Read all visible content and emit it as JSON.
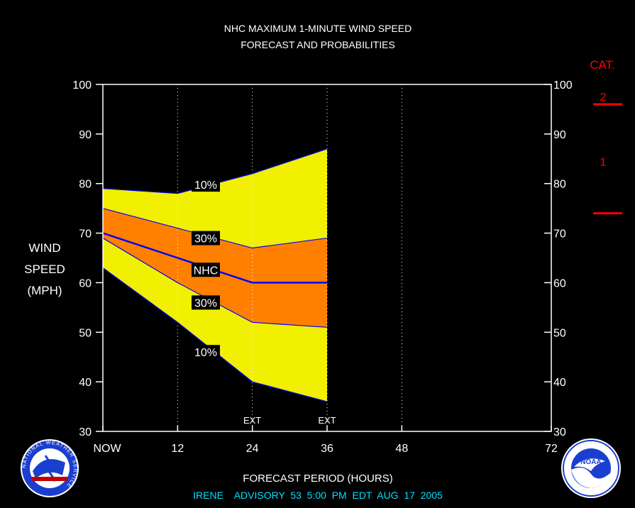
{
  "chart_data": {
    "type": "area",
    "title": "NHC MAXIMUM 1-MINUTE WIND SPEED",
    "subtitle": "FORECAST AND PROBABILITIES",
    "ylabel_lines": [
      "WIND",
      "SPEED",
      "(MPH)"
    ],
    "xlabel": "FORECAST PERIOD (HOURS)",
    "footer": "IRENE    ADVISORY  53  5:00  PM  EDT  AUG  17  2005",
    "ylim": [
      30,
      100
    ],
    "xlim": [
      0,
      72
    ],
    "x_ticks": [
      {
        "x": 0,
        "label": "NOW"
      },
      {
        "x": 12,
        "label": "12"
      },
      {
        "x": 24,
        "label": "24"
      },
      {
        "x": 36,
        "label": "36"
      },
      {
        "x": 48,
        "label": "48"
      },
      {
        "x": 72,
        "label": "72"
      }
    ],
    "y_ticks": [
      30,
      40,
      50,
      60,
      70,
      80,
      90,
      100
    ],
    "vertical_gridlines_x": [
      12,
      24,
      36,
      48
    ],
    "ext_markers": [
      {
        "x": 24,
        "label": "EXT"
      },
      {
        "x": 36,
        "label": "EXT"
      }
    ],
    "x": [
      0,
      12,
      24,
      36
    ],
    "series": [
      {
        "name": "10%",
        "role": "upper_10",
        "values": [
          79,
          78,
          82,
          87
        ]
      },
      {
        "name": "30%",
        "role": "upper_30",
        "values": [
          75,
          71,
          67,
          69
        ]
      },
      {
        "name": "NHC",
        "role": "forecast",
        "values": [
          70,
          65,
          60,
          60
        ]
      },
      {
        "name": "30%",
        "role": "lower_30",
        "values": [
          69,
          60,
          52,
          51
        ]
      },
      {
        "name": "10%",
        "role": "lower_10",
        "values": [
          63,
          52,
          40,
          36
        ]
      }
    ],
    "band_labels": [
      {
        "text": "10%",
        "x": 18,
        "y": 79.8
      },
      {
        "text": "30%",
        "x": 18,
        "y": 69
      },
      {
        "text": "NHC",
        "x": 18,
        "y": 62.6
      },
      {
        "text": "30%",
        "x": 18,
        "y": 56
      },
      {
        "text": "10%",
        "x": 18,
        "y": 46
      }
    ],
    "category_scale": {
      "title": "CAT.",
      "levels": [
        {
          "label": "2",
          "threshold_mph": 96
        },
        {
          "label": "1",
          "threshold_mph": 74
        }
      ],
      "category_1_label_at_mph": 84.5
    },
    "colors": {
      "background": "#000000",
      "outer_band": "#f0f000",
      "inner_band": "#ff8000",
      "forecast_line": "#0000ff",
      "band_edge": "#0000ff",
      "axis": "#ffffff",
      "category": "#ff0000",
      "footer": "#00e0ff"
    }
  },
  "logos": {
    "left": {
      "icon": "nws-logo-icon",
      "text": "NATIONAL WEATHER SERVICE"
    },
    "right": {
      "icon": "noaa-logo-icon",
      "text": "NOAA"
    }
  }
}
